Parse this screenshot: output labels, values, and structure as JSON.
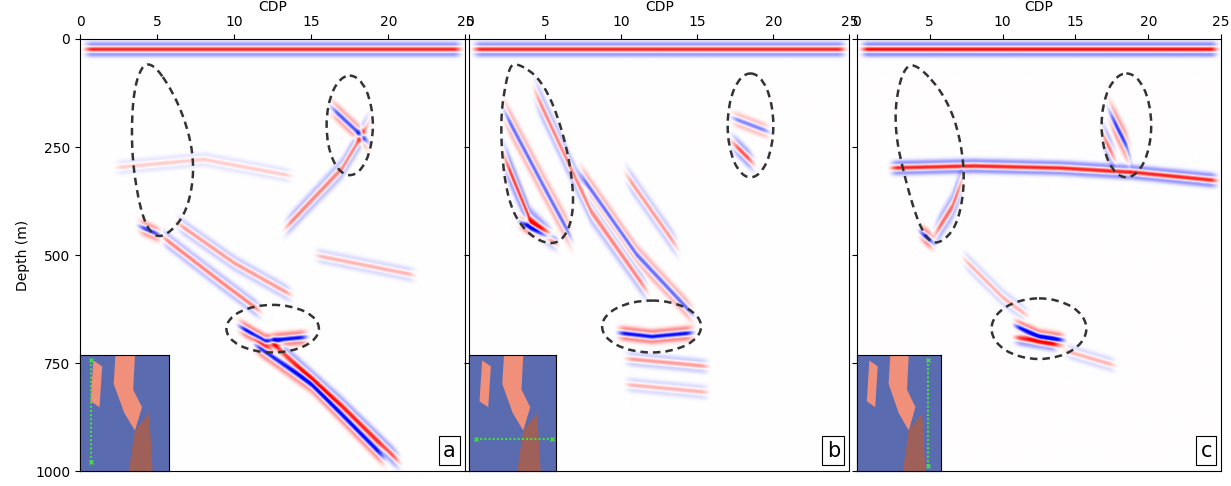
{
  "chart_data": [
    {
      "type": "seismic",
      "panel_label": "a",
      "xlabel": "CDP",
      "ylabel": "Depth (m)",
      "xlim": [
        0,
        25
      ],
      "ylim": [
        1000,
        0
      ],
      "xticks": [
        0,
        5,
        10,
        15,
        20,
        25
      ],
      "yticks": [
        0,
        250,
        500,
        750,
        1000
      ],
      "reflectors": [
        {
          "points": [
            [
              0,
              25
            ],
            [
              25,
              25
            ]
          ],
          "amplitude": 0.9
        },
        {
          "points": [
            [
              3.5,
              430
            ],
            [
              5.5,
              460
            ]
          ],
          "amplitude": -0.8
        },
        {
          "points": [
            [
              5,
              450
            ],
            [
              9,
              560
            ],
            [
              12,
              640
            ]
          ],
          "amplitude": 0.5
        },
        {
          "points": [
            [
              6,
              420
            ],
            [
              10,
              520
            ],
            [
              14,
              600
            ]
          ],
          "amplitude": 0.4
        },
        {
          "points": [
            [
              10,
              660
            ],
            [
              12,
              700
            ],
            [
              15,
              690
            ]
          ],
          "amplitude": -1.0
        },
        {
          "points": [
            [
              11,
              700
            ],
            [
              15,
              800
            ],
            [
              20,
              980
            ]
          ],
          "amplitude": -0.9
        },
        {
          "points": [
            [
              12,
              690
            ],
            [
              17,
              850
            ],
            [
              21,
              990
            ]
          ],
          "amplitude": 0.7
        },
        {
          "points": [
            [
              13,
              450
            ],
            [
              17,
              300
            ],
            [
              19,
              180
            ]
          ],
          "amplitude": 0.5
        },
        {
          "points": [
            [
              16,
              150
            ],
            [
              19,
              250
            ]
          ],
          "amplitude": -0.7
        },
        {
          "points": [
            [
              2,
              300
            ],
            [
              8,
              280
            ],
            [
              14,
              320
            ]
          ],
          "amplitude": 0.2
        },
        {
          "points": [
            [
              15,
              500
            ],
            [
              22,
              550
            ]
          ],
          "amplitude": 0.3
        }
      ],
      "regions": [
        {
          "points": [
            [
              4.5,
              40
            ],
            [
              6.5,
              150
            ],
            [
              7.5,
              280
            ],
            [
              7,
              400
            ],
            [
              5.5,
              460
            ],
            [
              4.5,
              450
            ],
            [
              3.8,
              380
            ],
            [
              3.3,
              250
            ],
            [
              3.5,
              100
            ]
          ]
        },
        {
          "center": [
            17.5,
            200
          ],
          "width": 3.0,
          "height": 230
        },
        {
          "center": [
            12.5,
            670
          ],
          "width": 6.0,
          "height": 110
        }
      ]
    },
    {
      "type": "seismic",
      "panel_label": "b",
      "xlabel": "CDP",
      "tick_labels": "x",
      "xlim": [
        0,
        25
      ],
      "ylim": [
        1000,
        0
      ],
      "xticks": [
        0,
        5,
        10,
        15,
        20,
        25
      ],
      "yticks": [
        0,
        250,
        500,
        750,
        1000
      ],
      "reflectors": [
        {
          "points": [
            [
              0,
              25
            ],
            [
              25,
              25
            ]
          ],
          "amplitude": 0.9
        },
        {
          "points": [
            [
              2,
              150
            ],
            [
              5,
              350
            ],
            [
              7,
              480
            ]
          ],
          "amplitude": -0.6
        },
        {
          "points": [
            [
              2,
              250
            ],
            [
              4,
              420
            ],
            [
              6,
              480
            ]
          ],
          "amplitude": 0.8
        },
        {
          "points": [
            [
              3,
              420
            ],
            [
              6,
              470
            ]
          ],
          "amplitude": -0.9
        },
        {
          "points": [
            [
              4,
              100
            ],
            [
              8,
              400
            ],
            [
              12,
              600
            ]
          ],
          "amplitude": 0.5
        },
        {
          "points": [
            [
              7,
              300
            ],
            [
              11,
              500
            ],
            [
              15,
              650
            ]
          ],
          "amplitude": -0.6
        },
        {
          "points": [
            [
              10,
              300
            ],
            [
              14,
              500
            ]
          ],
          "amplitude": 0.4
        },
        {
          "points": [
            [
              9.5,
              680
            ],
            [
              12,
              690
            ],
            [
              15,
              680
            ]
          ],
          "amplitude": -1.0
        },
        {
          "points": [
            [
              10,
              740
            ],
            [
              16,
              760
            ]
          ],
          "amplitude": 0.4
        },
        {
          "points": [
            [
              10,
              800
            ],
            [
              16,
              820
            ]
          ],
          "amplitude": 0.3
        },
        {
          "points": [
            [
              17,
              230
            ],
            [
              19,
              300
            ]
          ],
          "amplitude": 0.7
        },
        {
          "points": [
            [
              17,
              180
            ],
            [
              20,
              220
            ]
          ],
          "amplitude": -0.5
        }
      ],
      "regions": [
        {
          "points": [
            [
              3,
              50
            ],
            [
              5,
              100
            ],
            [
              6.5,
              250
            ],
            [
              7,
              400
            ],
            [
              6,
              480
            ],
            [
              4,
              460
            ],
            [
              2.5,
              380
            ],
            [
              2,
              200
            ],
            [
              2.5,
              80
            ]
          ]
        },
        {
          "center": [
            18.5,
            200
          ],
          "width": 3.0,
          "height": 240
        },
        {
          "center": [
            12,
            665
          ],
          "width": 6.5,
          "height": 120
        }
      ]
    },
    {
      "type": "seismic",
      "panel_label": "c",
      "xlabel": "CDP",
      "tick_labels": "x",
      "xlim": [
        0,
        25
      ],
      "ylim": [
        1000,
        0
      ],
      "xticks": [
        0,
        5,
        10,
        15,
        20,
        25
      ],
      "yticks": [
        0,
        250,
        500,
        750,
        1000
      ],
      "reflectors": [
        {
          "points": [
            [
              0,
              25
            ],
            [
              25,
              25
            ]
          ],
          "amplitude": 1.0
        },
        {
          "points": [
            [
              2,
              300
            ],
            [
              8,
              295
            ],
            [
              14,
              300
            ],
            [
              19,
              310
            ],
            [
              25,
              330
            ]
          ],
          "amplitude": 0.9
        },
        {
          "points": [
            [
              4,
              440
            ],
            [
              5.5,
              480
            ]
          ],
          "amplitude": -1.0
        },
        {
          "points": [
            [
              5,
              470
            ],
            [
              6.5,
              390
            ],
            [
              7.5,
              300
            ]
          ],
          "amplitude": 0.6
        },
        {
          "points": [
            [
              17,
              150
            ],
            [
              18.5,
              250
            ],
            [
              19,
              300
            ]
          ],
          "amplitude": -0.8
        },
        {
          "points": [
            [
              16.5,
              200
            ],
            [
              18,
              300
            ]
          ],
          "amplitude": 0.6
        },
        {
          "points": [
            [
              10.5,
              660
            ],
            [
              12.5,
              690
            ],
            [
              14.5,
              700
            ]
          ],
          "amplitude": -1.0
        },
        {
          "points": [
            [
              10.5,
              690
            ],
            [
              14,
              710
            ]
          ],
          "amplitude": 0.8
        },
        {
          "points": [
            [
              7,
              500
            ],
            [
              10,
              600
            ],
            [
              12,
              650
            ]
          ],
          "amplitude": 0.3
        },
        {
          "points": [
            [
              14,
              720
            ],
            [
              18,
              760
            ]
          ],
          "amplitude": 0.3
        }
      ],
      "regions": [
        {
          "points": [
            [
              4,
              50
            ],
            [
              6.5,
              150
            ],
            [
              7.5,
              300
            ],
            [
              7,
              430
            ],
            [
              5.5,
              480
            ],
            [
              4.5,
              450
            ],
            [
              3.5,
              350
            ],
            [
              2.5,
              200
            ],
            [
              3,
              80
            ]
          ]
        },
        {
          "center": [
            18.5,
            200
          ],
          "width": 3.4,
          "height": 240
        },
        {
          "center": [
            12.5,
            670
          ],
          "width": 6.5,
          "height": 140
        }
      ]
    }
  ]
}
